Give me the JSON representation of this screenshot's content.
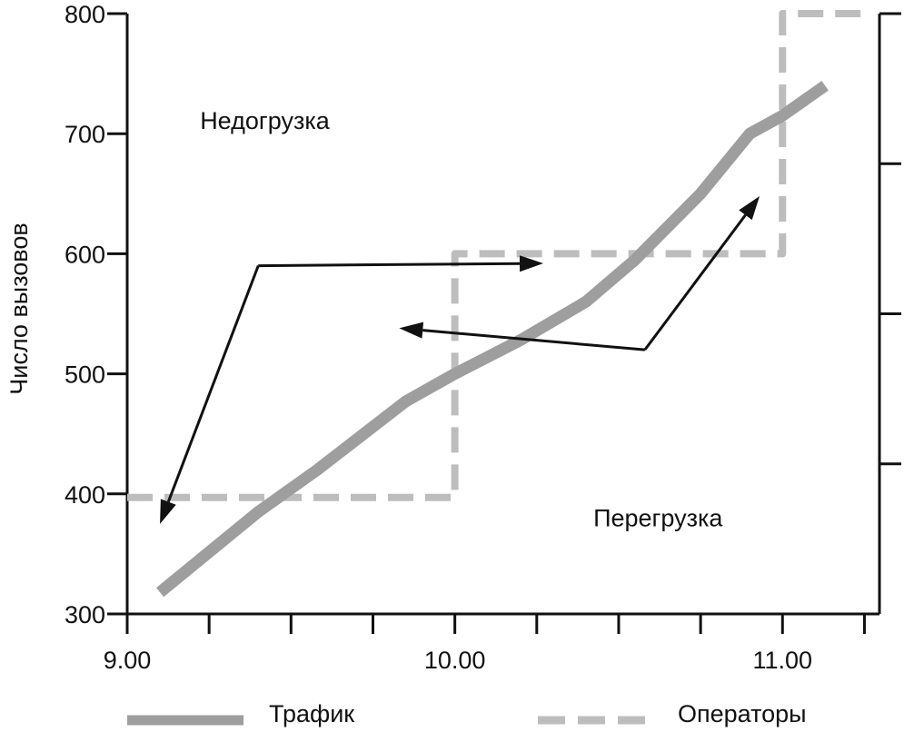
{
  "chart_data": {
    "type": "line",
    "ylabel": "Число вызовов",
    "xlabel": "",
    "ylim": [
      300,
      800
    ],
    "xlim": [
      9.0,
      11.25
    ],
    "yticks": [
      {
        "v": 300,
        "label": "300"
      },
      {
        "v": 400,
        "label": "400"
      },
      {
        "v": 500,
        "label": "500"
      },
      {
        "v": 600,
        "label": "600"
      },
      {
        "v": 700,
        "label": "700"
      },
      {
        "v": 800,
        "label": "800"
      }
    ],
    "xticks": [
      9.0,
      9.25,
      9.5,
      9.75,
      10.0,
      10.25,
      10.5,
      10.75,
      11.0,
      11.25
    ],
    "xtick_labels": [
      {
        "v": 9.0,
        "label": "9.00"
      },
      {
        "v": 10.0,
        "label": "10.00"
      },
      {
        "v": 11.0,
        "label": "11.00"
      }
    ],
    "right_axis_ticks": [
      675,
      550,
      425,
      800
    ],
    "series": [
      {
        "name": "Трафик",
        "style": "solid",
        "color": "#9e9e9e",
        "x": [
          9.1,
          9.4,
          9.58,
          9.85,
          10.0,
          10.2,
          10.4,
          10.55,
          10.75,
          10.9,
          11.0,
          11.13
        ],
        "y": [
          318,
          385,
          420,
          477,
          500,
          528,
          560,
          595,
          650,
          700,
          715,
          740
        ]
      },
      {
        "name": "Операторы",
        "style": "dashed",
        "color": "#bdbdbd",
        "x": [
          9.0,
          10.0,
          10.0,
          11.0,
          11.0,
          11.25
        ],
        "y": [
          397,
          397,
          600,
          600,
          800,
          800
        ]
      }
    ],
    "annotations": [
      {
        "text": "Недогрузка",
        "x": 9.42,
        "y": 704
      },
      {
        "text": "Перегрузка",
        "x": 10.62,
        "y": 373
      }
    ],
    "arrows": [
      {
        "from": [
          9.4,
          590
        ],
        "to": [
          9.1,
          375
        ]
      },
      {
        "from": [
          9.4,
          590
        ],
        "to": [
          10.27,
          592
        ]
      },
      {
        "from": [
          10.58,
          520
        ],
        "to": [
          9.83,
          538
        ]
      },
      {
        "from": [
          10.58,
          520
        ],
        "to": [
          10.93,
          648
        ]
      }
    ],
    "legend": {
      "position": "bottom",
      "items": [
        {
          "label": "Трафик",
          "style": "solid"
        },
        {
          "label": "Операторы",
          "style": "dashed"
        }
      ]
    },
    "grid": false
  }
}
